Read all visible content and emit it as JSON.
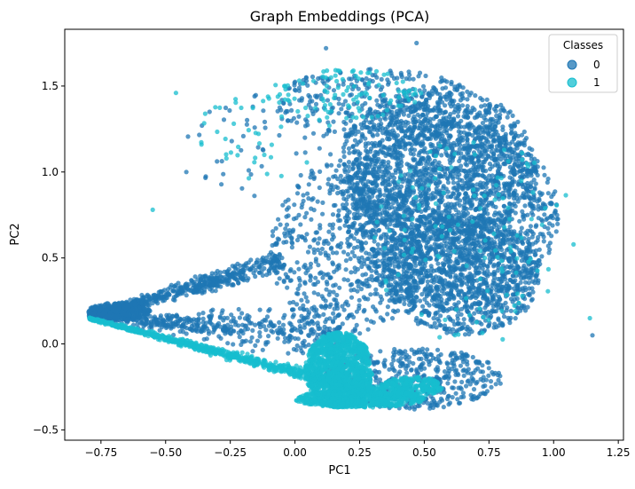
{
  "chart_data": {
    "type": "scatter",
    "title": "Graph Embeddings (PCA)",
    "xlabel": "PC1",
    "ylabel": "PC2",
    "xlim": [
      -0.89,
      1.27
    ],
    "ylim": [
      -0.56,
      1.83
    ],
    "x_ticks": [
      -0.75,
      -0.5,
      -0.25,
      0.0,
      0.25,
      0.5,
      0.75,
      1.0,
      1.25
    ],
    "x_tick_labels": [
      "−0.75",
      "−0.50",
      "−0.25",
      "0.00",
      "0.25",
      "0.50",
      "0.75",
      "1.00",
      "1.25"
    ],
    "y_ticks": [
      -0.5,
      0.0,
      0.5,
      1.0,
      1.5
    ],
    "y_tick_labels": [
      "−0.5",
      "0.0",
      "0.5",
      "1.0",
      "1.5"
    ],
    "grid": false,
    "legend": {
      "title": "Classes",
      "placement": "top-right"
    },
    "series": [
      {
        "name": "0",
        "color": "#1f77b4"
      },
      {
        "name": "1",
        "color": "#17becf"
      }
    ],
    "regions": [
      {
        "series": 0,
        "kind": "ellipse",
        "cx": 0.6,
        "cy": 0.75,
        "rx": 0.42,
        "ry": 0.55,
        "n": 1700
      },
      {
        "series": 0,
        "kind": "ellipse",
        "cx": 0.55,
        "cy": 1.05,
        "rx": 0.38,
        "ry": 0.45,
        "n": 1200
      },
      {
        "series": 0,
        "kind": "ellipse",
        "cx": 0.65,
        "cy": 0.4,
        "rx": 0.3,
        "ry": 0.35,
        "n": 900
      },
      {
        "series": 0,
        "kind": "ellipse",
        "cx": 0.2,
        "cy": 0.55,
        "rx": 0.3,
        "ry": 0.5,
        "n": 600
      },
      {
        "series": 0,
        "kind": "ellipse",
        "cx": 0.45,
        "cy": -0.2,
        "rx": 0.35,
        "ry": 0.18,
        "n": 500
      },
      {
        "series": 0,
        "kind": "ellipse",
        "cx": 0.3,
        "cy": 1.4,
        "rx": 0.4,
        "ry": 0.2,
        "n": 300
      },
      {
        "series": 0,
        "kind": "band",
        "x0": -0.8,
        "y0": 0.16,
        "x1": -0.05,
        "y1": 0.48,
        "w": 0.06,
        "n": 550
      },
      {
        "series": 0,
        "kind": "band",
        "x0": -0.8,
        "y0": 0.16,
        "x1": 0.2,
        "y1": 0.05,
        "w": 0.12,
        "n": 500
      },
      {
        "series": 0,
        "kind": "ellipse",
        "cx": -0.68,
        "cy": 0.19,
        "rx": 0.12,
        "ry": 0.05,
        "n": 350
      },
      {
        "series": 0,
        "kind": "ellipse",
        "cx": -0.15,
        "cy": 1.15,
        "rx": 0.3,
        "ry": 0.3,
        "n": 50
      },
      {
        "series": 1,
        "kind": "band",
        "x0": -0.8,
        "y0": 0.15,
        "x1": 0.35,
        "y1": -0.3,
        "w": 0.035,
        "n": 1000
      },
      {
        "series": 1,
        "kind": "ellipse",
        "cx": 0.17,
        "cy": -0.15,
        "rx": 0.13,
        "ry": 0.22,
        "n": 1400
      },
      {
        "series": 1,
        "kind": "ellipse",
        "cx": 0.25,
        "cy": -0.32,
        "rx": 0.25,
        "ry": 0.05,
        "n": 600
      },
      {
        "series": 1,
        "kind": "ellipse",
        "cx": 0.45,
        "cy": -0.25,
        "rx": 0.12,
        "ry": 0.06,
        "n": 250
      },
      {
        "series": 1,
        "kind": "ellipse",
        "cx": 0.2,
        "cy": 1.45,
        "rx": 0.3,
        "ry": 0.15,
        "n": 100
      },
      {
        "series": 1,
        "kind": "ellipse",
        "cx": -0.1,
        "cy": 1.2,
        "rx": 0.3,
        "ry": 0.25,
        "n": 40
      },
      {
        "series": 1,
        "kind": "ellipse",
        "cx": 0.7,
        "cy": 0.6,
        "rx": 0.4,
        "ry": 0.6,
        "n": 120
      }
    ],
    "outliers": [
      {
        "series": 1,
        "x": -0.55,
        "y": 0.78
      },
      {
        "series": 1,
        "x": -0.46,
        "y": 1.46
      },
      {
        "series": 0,
        "x": -0.42,
        "y": 1.0
      },
      {
        "series": 0,
        "x": -0.33,
        "y": 1.35
      },
      {
        "series": 1,
        "x": 1.14,
        "y": 0.15
      },
      {
        "series": 0,
        "x": 1.15,
        "y": 0.05
      },
      {
        "series": 0,
        "x": 0.47,
        "y": 1.75
      },
      {
        "series": 0,
        "x": 0.12,
        "y": 1.72
      }
    ]
  }
}
